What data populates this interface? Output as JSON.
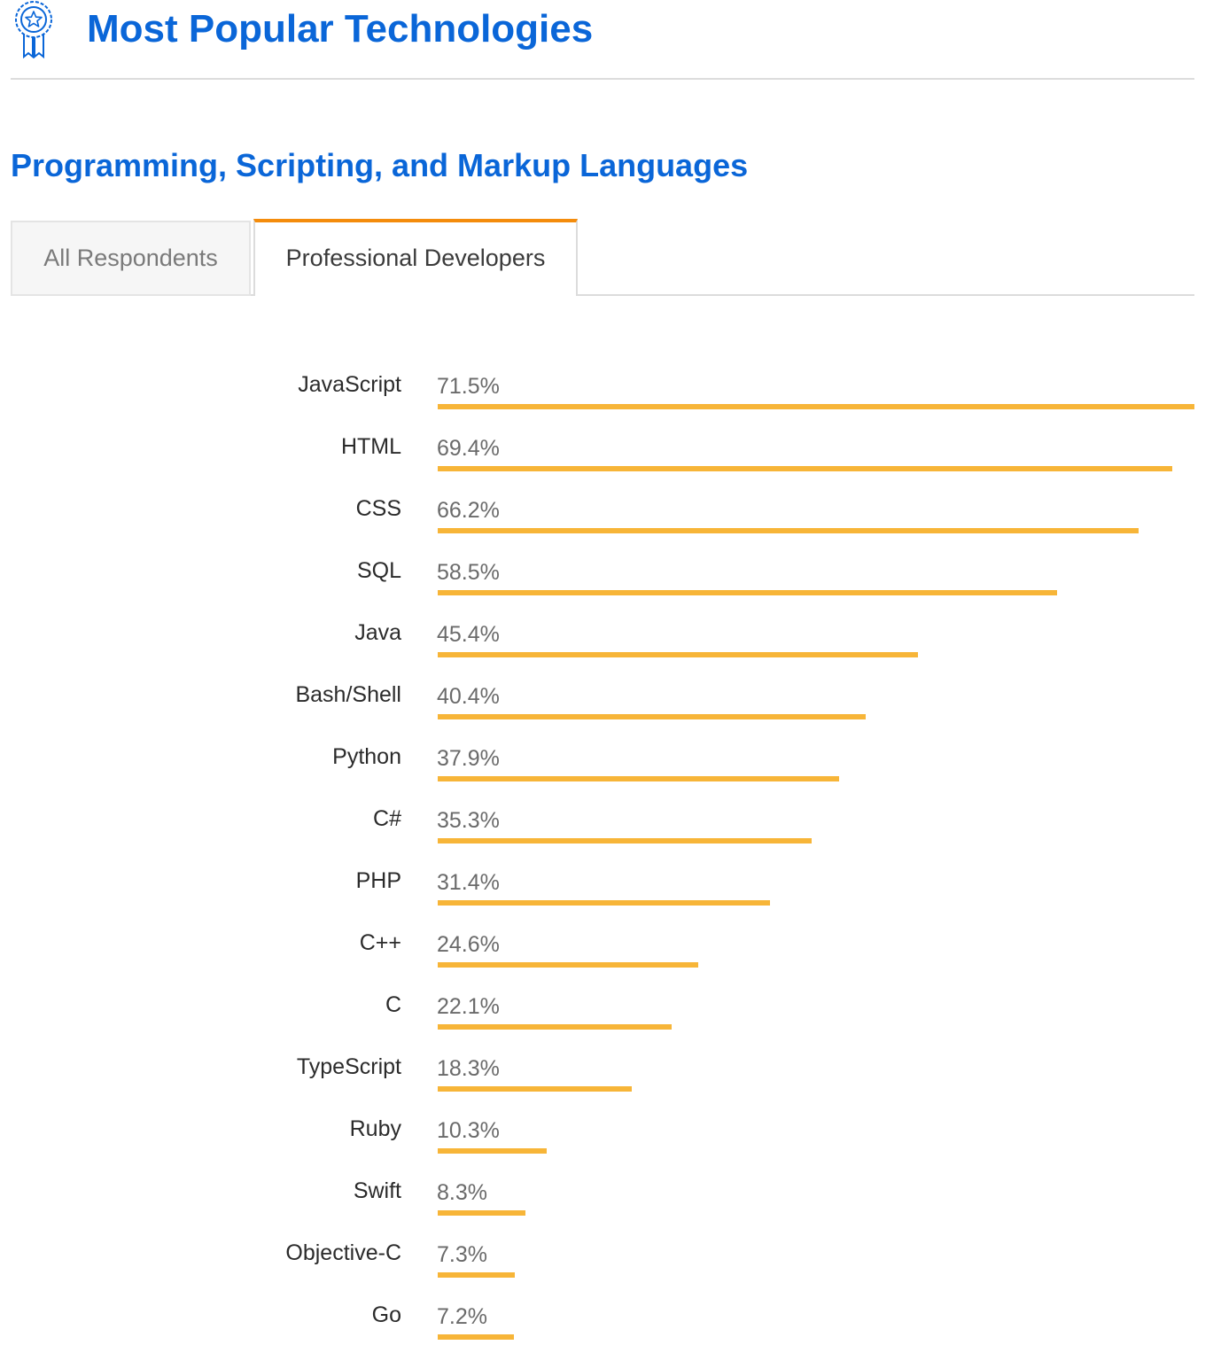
{
  "header": {
    "title": "Most Popular Technologies",
    "icon": "award-ribbon-icon"
  },
  "section": {
    "title": "Programming, Scripting, and Markup Languages"
  },
  "tabs": [
    {
      "label": "All Respondents",
      "active": false
    },
    {
      "label": "Professional Developers",
      "active": true
    }
  ],
  "colors": {
    "accent_blue": "#0a66d8",
    "bar": "#f7b538",
    "tab_active_border": "#f48c0c"
  },
  "chart_data": {
    "type": "bar",
    "orientation": "horizontal",
    "categories": [
      "JavaScript",
      "HTML",
      "CSS",
      "SQL",
      "Java",
      "Bash/Shell",
      "Python",
      "C#",
      "PHP",
      "C++",
      "C",
      "TypeScript",
      "Ruby",
      "Swift",
      "Objective-C",
      "Go"
    ],
    "values": [
      71.5,
      69.4,
      66.2,
      58.5,
      45.4,
      40.4,
      37.9,
      35.3,
      31.4,
      24.6,
      22.1,
      18.3,
      10.3,
      8.3,
      7.3,
      7.2
    ],
    "value_labels": [
      "71.5%",
      "69.4%",
      "66.2%",
      "58.5%",
      "45.4%",
      "40.4%",
      "37.9%",
      "35.3%",
      "31.4%",
      "24.6%",
      "22.1%",
      "18.3%",
      "10.3%",
      "8.3%",
      "7.3%",
      "7.2%"
    ],
    "unit": "%",
    "title": "",
    "xlabel": "",
    "ylabel": "",
    "grid": false,
    "legend": "none"
  }
}
